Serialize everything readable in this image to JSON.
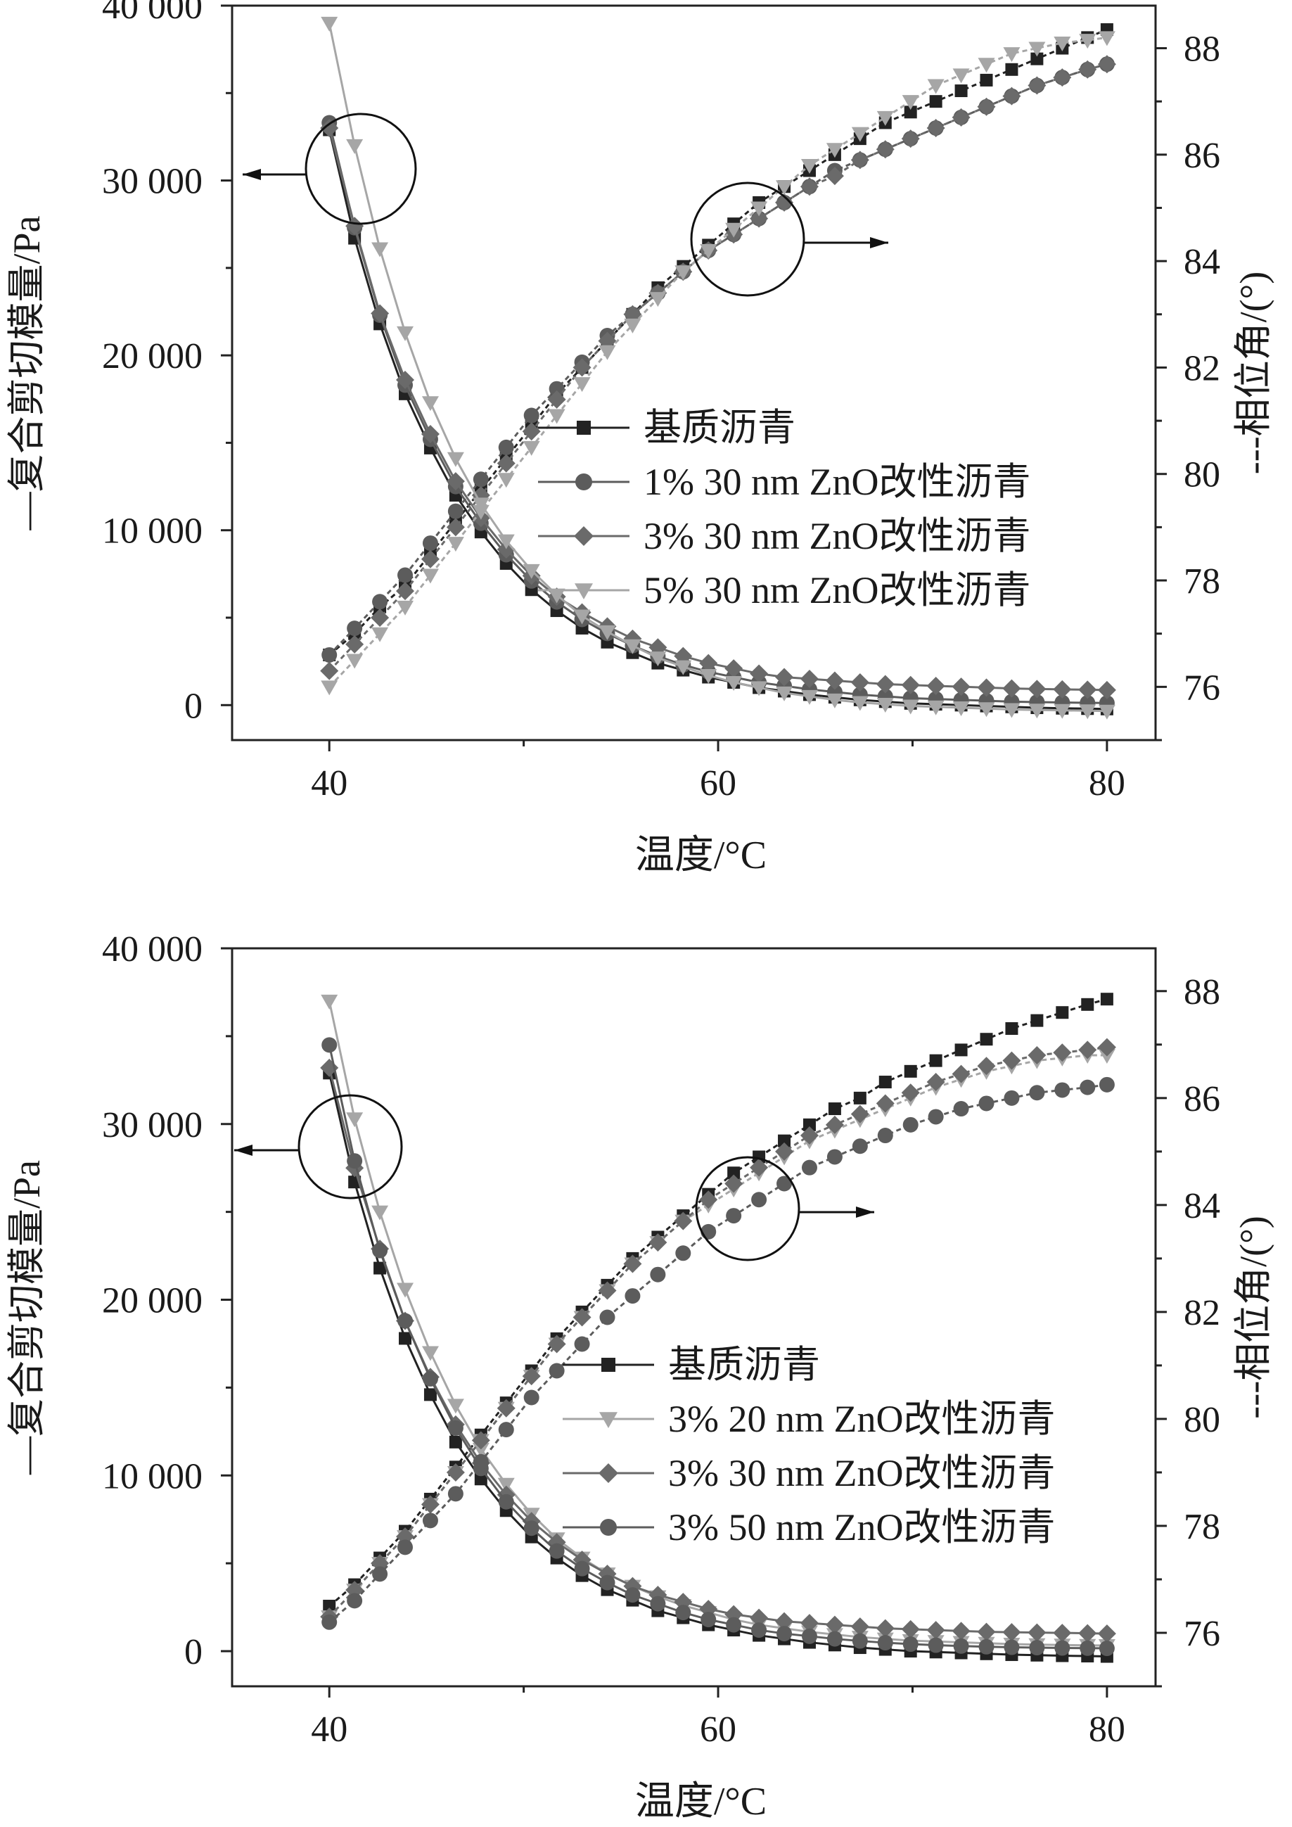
{
  "chart_data": [
    {
      "type": "line",
      "xlabel": "温度/°C",
      "ylabel_left": "—复合剪切模量/Pa",
      "ylabel_right": "---相位角/(°)",
      "x_ticks": [
        "40",
        "60",
        "80"
      ],
      "y_left_ticks": [
        "0",
        "10 000",
        "20 000",
        "30 000",
        "40 000"
      ],
      "y_right_ticks": [
        "76",
        "78",
        "80",
        "82",
        "84",
        "86",
        "88"
      ],
      "xlim": [
        35,
        82.5
      ],
      "ylim_left": [
        -2000,
        40000
      ],
      "ylim_right": [
        75,
        88.8
      ],
      "legend_position": "center-right",
      "x": [
        40,
        41.3,
        42.6,
        43.9,
        45.2,
        46.5,
        47.8,
        49.1,
        50.4,
        51.7,
        53,
        54.3,
        55.6,
        56.9,
        58.2,
        59.5,
        60.8,
        62.1,
        63.4,
        64.7,
        66,
        67.3,
        68.6,
        69.9,
        71.2,
        72.5,
        73.8,
        75.1,
        76.4,
        77.7,
        79,
        80
      ],
      "series": [
        {
          "name": "基质沥青",
          "marker": "square",
          "color": "#222222",
          "modulus": [
            32900,
            26700,
            21800,
            17800,
            14700,
            12000,
            9900,
            8100,
            6600,
            5400,
            4400,
            3600,
            3000,
            2400,
            2000,
            1600,
            1300,
            1000,
            800,
            600,
            450,
            300,
            200,
            100,
            50,
            0,
            -50,
            -100,
            -150,
            -180,
            -200,
            -220
          ],
          "phase": [
            76.6,
            77.0,
            77.5,
            77.9,
            78.5,
            79.1,
            79.7,
            80.3,
            80.9,
            81.5,
            82.0,
            82.5,
            83.0,
            83.5,
            83.9,
            84.3,
            84.7,
            85.1,
            85.4,
            85.7,
            86.0,
            86.3,
            86.6,
            86.8,
            87.0,
            87.2,
            87.4,
            87.6,
            87.8,
            88.0,
            88.2,
            88.35
          ]
        },
        {
          "name": "1% 30 nm ZnO改性沥青",
          "marker": "circle",
          "color": "#5c5c5c",
          "modulus": [
            33300,
            27300,
            22300,
            18300,
            15200,
            12500,
            10400,
            8600,
            7100,
            5900,
            4900,
            4100,
            3400,
            2800,
            2300,
            1900,
            1600,
            1300,
            1100,
            900,
            750,
            600,
            500,
            400,
            350,
            300,
            250,
            200,
            170,
            150,
            130,
            120
          ],
          "phase": [
            76.6,
            77.1,
            77.6,
            78.1,
            78.7,
            79.3,
            79.9,
            80.5,
            81.1,
            81.6,
            82.1,
            82.6,
            83.0,
            83.4,
            83.8,
            84.2,
            84.5,
            84.8,
            85.1,
            85.4,
            85.7,
            85.9,
            86.1,
            86.3,
            86.5,
            86.7,
            86.9,
            87.1,
            87.3,
            87.45,
            87.6,
            87.7
          ]
        },
        {
          "name": "3% 30 nm ZnO改性沥青",
          "marker": "diamond",
          "color": "#6a6a6a",
          "modulus": [
            33000,
            27400,
            22400,
            18600,
            15500,
            12800,
            10700,
            8900,
            7400,
            6200,
            5300,
            4500,
            3800,
            3300,
            2800,
            2400,
            2100,
            1800,
            1600,
            1500,
            1400,
            1300,
            1200,
            1150,
            1100,
            1050,
            1000,
            950,
            920,
            900,
            880,
            860
          ],
          "phase": [
            76.3,
            76.8,
            77.3,
            77.8,
            78.4,
            79.0,
            79.6,
            80.2,
            80.8,
            81.4,
            82.0,
            82.5,
            83.0,
            83.4,
            83.8,
            84.2,
            84.5,
            84.8,
            85.1,
            85.4,
            85.6,
            85.9,
            86.1,
            86.3,
            86.5,
            86.7,
            86.9,
            87.1,
            87.3,
            87.45,
            87.6,
            87.7
          ]
        },
        {
          "name": "5% 30 nm ZnO改性沥青",
          "marker": "triangle-down",
          "color": "#a6a6a6",
          "modulus": [
            39000,
            32000,
            26100,
            21300,
            17300,
            14100,
            11500,
            9400,
            7700,
            6300,
            5100,
            4200,
            3400,
            2700,
            2200,
            1700,
            1300,
            1000,
            700,
            500,
            300,
            150,
            50,
            -50,
            -100,
            -150,
            -200,
            -250,
            -280,
            -300,
            -320,
            -340
          ],
          "phase": [
            76.0,
            76.5,
            77.0,
            77.5,
            78.1,
            78.7,
            79.3,
            79.9,
            80.5,
            81.1,
            81.7,
            82.3,
            82.8,
            83.3,
            83.8,
            84.2,
            84.6,
            85.0,
            85.4,
            85.8,
            86.1,
            86.4,
            86.7,
            87.0,
            87.3,
            87.5,
            87.7,
            87.9,
            88.0,
            88.1,
            88.15,
            88.2
          ]
        }
      ],
      "annotations": [
        {
          "type": "circle",
          "target": "modulus curves",
          "arrow": "left"
        },
        {
          "type": "circle",
          "target": "phase angle curves",
          "arrow": "right"
        }
      ]
    },
    {
      "type": "line",
      "xlabel": "温度/°C",
      "ylabel_left": "—复合剪切模量/Pa",
      "ylabel_right": "---相位角/(°)",
      "x_ticks": [
        "40",
        "60",
        "80"
      ],
      "y_left_ticks": [
        "0",
        "10 000",
        "20 000",
        "30 000",
        "40 000"
      ],
      "y_right_ticks": [
        "76",
        "78",
        "80",
        "82",
        "84",
        "86",
        "88"
      ],
      "xlim": [
        35,
        82.5
      ],
      "ylim_left": [
        -2000,
        40000
      ],
      "ylim_right": [
        75,
        88.8
      ],
      "legend_position": "center-right",
      "x": [
        40,
        41.3,
        42.6,
        43.9,
        45.2,
        46.5,
        47.8,
        49.1,
        50.4,
        51.7,
        53,
        54.3,
        55.6,
        56.9,
        58.2,
        59.5,
        60.8,
        62.1,
        63.4,
        64.7,
        66,
        67.3,
        68.6,
        69.9,
        71.2,
        72.5,
        73.8,
        75.1,
        76.4,
        77.7,
        79,
        80
      ],
      "series": [
        {
          "name": "基质沥青",
          "marker": "square",
          "color": "#222222",
          "modulus": [
            32900,
            26700,
            21800,
            17800,
            14600,
            11900,
            9800,
            8000,
            6500,
            5300,
            4300,
            3500,
            2900,
            2300,
            1900,
            1500,
            1200,
            900,
            700,
            500,
            350,
            200,
            100,
            0,
            -50,
            -100,
            -150,
            -200,
            -230,
            -260,
            -280,
            -300
          ],
          "phase": [
            76.5,
            76.9,
            77.4,
            77.9,
            78.5,
            79.1,
            79.7,
            80.3,
            80.9,
            81.5,
            82.0,
            82.5,
            83.0,
            83.4,
            83.8,
            84.2,
            84.6,
            84.9,
            85.2,
            85.5,
            85.8,
            86.0,
            86.3,
            86.5,
            86.7,
            86.9,
            87.1,
            87.3,
            87.45,
            87.6,
            87.75,
            87.85
          ]
        },
        {
          "name": "3% 20 nm ZnO改性沥青",
          "marker": "triangle-down",
          "color": "#a6a6a6",
          "modulus": [
            37000,
            30300,
            25000,
            20600,
            17000,
            14000,
            11500,
            9500,
            7800,
            6400,
            5300,
            4400,
            3700,
            3100,
            2600,
            2200,
            1800,
            1500,
            1300,
            1100,
            950,
            800,
            700,
            600,
            550,
            500,
            450,
            400,
            370,
            350,
            330,
            320
          ],
          "phase": [
            76.3,
            76.8,
            77.3,
            77.8,
            78.4,
            79.0,
            79.6,
            80.2,
            80.8,
            81.4,
            81.9,
            82.4,
            82.9,
            83.3,
            83.7,
            84.0,
            84.3,
            84.6,
            84.9,
            85.2,
            85.4,
            85.6,
            85.8,
            86.0,
            86.2,
            86.35,
            86.5,
            86.6,
            86.7,
            86.75,
            86.8,
            86.8
          ]
        },
        {
          "name": "3% 30 nm ZnO改性沥青",
          "marker": "diamond",
          "color": "#6a6a6a",
          "modulus": [
            33200,
            27500,
            22900,
            18800,
            15600,
            12900,
            10700,
            8900,
            7400,
            6200,
            5200,
            4400,
            3700,
            3200,
            2800,
            2400,
            2100,
            1900,
            1700,
            1600,
            1500,
            1400,
            1300,
            1250,
            1200,
            1150,
            1100,
            1080,
            1060,
            1040,
            1020,
            1000
          ],
          "phase": [
            76.3,
            76.8,
            77.3,
            77.8,
            78.4,
            79.0,
            79.6,
            80.2,
            80.8,
            81.4,
            81.9,
            82.4,
            82.9,
            83.3,
            83.7,
            84.1,
            84.4,
            84.7,
            85.0,
            85.3,
            85.5,
            85.7,
            85.9,
            86.1,
            86.3,
            86.45,
            86.6,
            86.7,
            86.8,
            86.85,
            86.9,
            86.95
          ]
        },
        {
          "name": "3% 50 nm ZnO改性沥青",
          "marker": "circle",
          "color": "#5c5c5c",
          "modulus": [
            34500,
            27900,
            22800,
            18800,
            15500,
            12700,
            10400,
            8500,
            7000,
            5700,
            4700,
            3900,
            3200,
            2700,
            2200,
            1800,
            1500,
            1200,
            1000,
            850,
            700,
            580,
            480,
            400,
            340,
            290,
            250,
            220,
            200,
            180,
            170,
            160
          ],
          "phase": [
            76.2,
            76.6,
            77.1,
            77.6,
            78.1,
            78.6,
            79.2,
            79.8,
            80.4,
            80.9,
            81.4,
            81.9,
            82.3,
            82.7,
            83.1,
            83.5,
            83.8,
            84.1,
            84.4,
            84.7,
            84.9,
            85.1,
            85.3,
            85.5,
            85.65,
            85.8,
            85.9,
            86.0,
            86.1,
            86.15,
            86.2,
            86.25
          ]
        }
      ],
      "annotations": [
        {
          "type": "circle",
          "target": "modulus curves",
          "arrow": "left"
        },
        {
          "type": "circle",
          "target": "phase angle curves",
          "arrow": "right"
        }
      ]
    }
  ]
}
